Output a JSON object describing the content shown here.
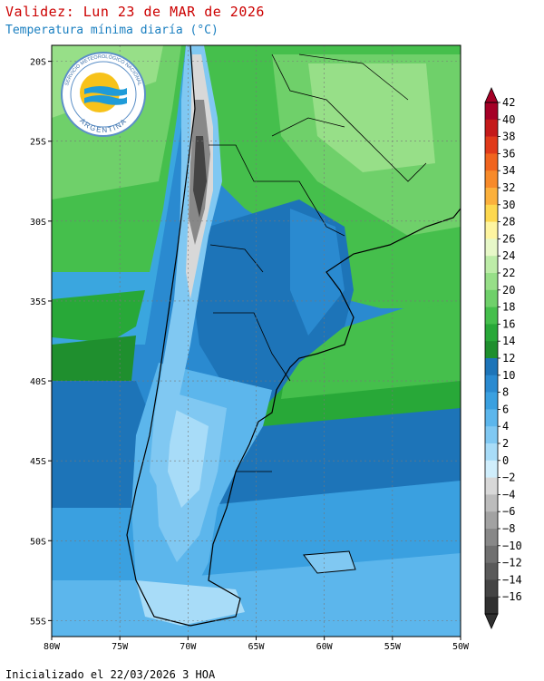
{
  "header": {
    "title": "Validez: Lun 23 de MAR de 2026",
    "subtitle": "Temperatura mínima diaría (°C)"
  },
  "footer": {
    "init": "Inicializado el 22/03/2026 3 HOA"
  },
  "logo": {
    "top_text": "SERVICIO METEOROLÓGICO NACIONAL",
    "bottom_text": "ARGENTINA"
  },
  "map": {
    "lon_ticks": [
      "80W",
      "75W",
      "70W",
      "65W",
      "60W",
      "55W",
      "50W"
    ],
    "lat_ticks": [
      "20S",
      "25S",
      "30S",
      "35S",
      "40S",
      "45S",
      "50S",
      "55S"
    ],
    "lon_range": [
      -80,
      -50
    ],
    "lat_range": [
      -56,
      -19
    ],
    "gridlines": true,
    "ocean_color": "#1a73c2"
  },
  "colorbar": {
    "labels": [
      "42",
      "40",
      "38",
      "36",
      "34",
      "32",
      "30",
      "28",
      "26",
      "24",
      "22",
      "20",
      "18",
      "16",
      "14",
      "12",
      "10",
      "8",
      "6",
      "4",
      "2",
      "0",
      "−2",
      "−4",
      "−6",
      "−8",
      "−10",
      "−12",
      "−14",
      "−16"
    ],
    "colors": [
      "#a50026",
      "#c41a1a",
      "#e03a1a",
      "#f0641e",
      "#f78a2a",
      "#fbb03c",
      "#fdd84f",
      "#fef5a0",
      "#e7f8c8",
      "#bdeca8",
      "#97df88",
      "#6fd06a",
      "#45bf4c",
      "#28a838",
      "#1f8f2e",
      "#1d74b8",
      "#2a8ad0",
      "#3aa0e0",
      "#5cb6ec",
      "#80c8f2",
      "#a8dcf8",
      "#d0eefc",
      "#d8d8d8",
      "#bcbcbc",
      "#a2a2a2",
      "#888888",
      "#707070",
      "#5a5a5a",
      "#444444",
      "#303030"
    ]
  }
}
